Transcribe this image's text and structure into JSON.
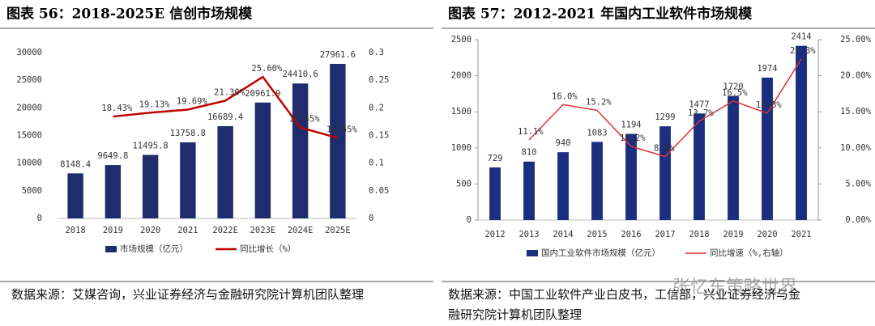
{
  "chart_data": [
    {
      "type": "bar",
      "title": "图表 56：2018-2025E 信创市场规模",
      "categories": [
        "2018",
        "2019",
        "2020",
        "2021",
        "2022E",
        "2023E",
        "2024E",
        "2025E"
      ],
      "series": [
        {
          "name": "市场规模（亿元）",
          "color": "#1f2d6e",
          "type": "bar",
          "values": [
            8148.4,
            9649.8,
            11495.8,
            13758.8,
            16689.4,
            20961.9,
            24410.6,
            27961.6
          ]
        },
        {
          "name": "同比增长（%）",
          "color": "#c00000",
          "type": "line",
          "axis": "y2",
          "values": [
            null,
            0.1843,
            0.1913,
            0.1969,
            0.213,
            0.256,
            0.1645,
            0.1455
          ],
          "value_labels": [
            null,
            "18.43%",
            "19.13%",
            "19.69%",
            "21.30%",
            "25.60%",
            "16.45%",
            "14.55%"
          ]
        }
      ],
      "ylim": [
        0,
        30000
      ],
      "yticks": [
        0,
        5000,
        10000,
        15000,
        20000,
        25000,
        30000
      ],
      "y2lim": [
        0,
        0.3
      ],
      "y2ticks": [
        0,
        0.05,
        0.1,
        0.15,
        0.2,
        0.25,
        0.3
      ],
      "source": "数据来源：艾媒咨询，兴业证券经济与金融研究院计算机团队整理"
    },
    {
      "type": "bar",
      "title": "图表 57：2012-2021 年国内工业软件市场规模",
      "categories": [
        "2012",
        "2013",
        "2014",
        "2015",
        "2016",
        "2017",
        "2018",
        "2019",
        "2020",
        "2021"
      ],
      "series": [
        {
          "name": "国内工业软件市场规模（亿元）",
          "color": "#1a2f80",
          "type": "bar",
          "values": [
            729,
            810,
            940,
            1083,
            1194,
            1299,
            1477,
            1720,
            1974,
            2414
          ]
        },
        {
          "name": "同比增速（%,右轴）",
          "color": "#e03030",
          "type": "line",
          "axis": "y2",
          "values": [
            null,
            11.1,
            16.0,
            15.2,
            10.2,
            8.8,
            13.7,
            16.5,
            14.8,
            22.3
          ],
          "value_labels": [
            null,
            "11.1%",
            "16.0%",
            "15.2%",
            "10.2%",
            "8.8%",
            "13.7%",
            "16.5%",
            "14.8%",
            "22.3%"
          ]
        }
      ],
      "ylim": [
        0,
        2500
      ],
      "yticks": [
        0,
        500,
        1000,
        1500,
        2000,
        2500
      ],
      "y2lim": [
        0,
        25
      ],
      "y2ticks": [
        {
          "value": 0,
          "label": "0.00%"
        },
        {
          "value": 5,
          "label": "5.00%"
        },
        {
          "value": 10,
          "label": "10.00%"
        },
        {
          "value": 15,
          "label": "15.00%"
        },
        {
          "value": 20,
          "label": "20.00%"
        },
        {
          "value": 25,
          "label": "25.00%"
        }
      ],
      "source": "数据来源：中国工业软件产业白皮书，工信部，兴业证券经济与金融研究院计算机团队整理"
    }
  ],
  "watermark": "张忆东策略世界"
}
